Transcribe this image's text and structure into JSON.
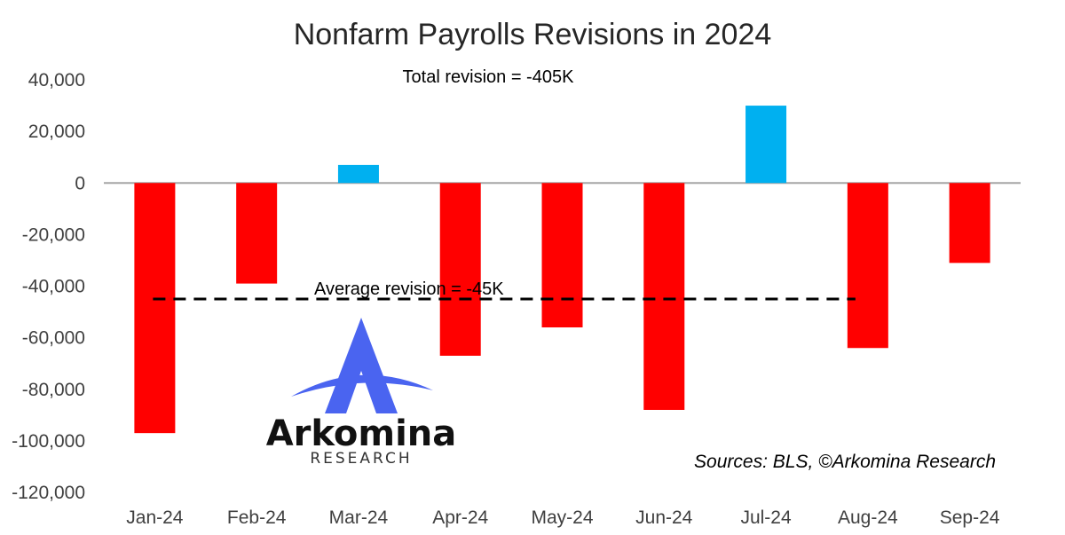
{
  "chart_data": {
    "type": "bar",
    "title": "Nonfarm Payrolls Revisions in 2024",
    "categories": [
      "Jan-24",
      "Feb-24",
      "Mar-24",
      "Apr-24",
      "May-24",
      "Jun-24",
      "Jul-24",
      "Aug-24",
      "Sep-24"
    ],
    "values": [
      -97000,
      -39000,
      7000,
      -67000,
      -56000,
      -88000,
      30000,
      -64000,
      -31000
    ],
    "ylim": [
      -120000,
      40000
    ],
    "yticks": [
      40000,
      20000,
      0,
      -20000,
      -40000,
      -60000,
      -80000,
      -100000,
      -120000
    ],
    "ytick_labels": [
      "40,000",
      "20,000",
      "0",
      "-20,000",
      "-40,000",
      "-60,000",
      "-80,000",
      "-100,000",
      "-120,000"
    ],
    "colors": {
      "negative": "#ff0000",
      "positive": "#00b0f0",
      "zero_line": "#a6a6a6",
      "average_line": "#000000"
    },
    "average_line": {
      "value": -45000,
      "label": "Average revision = -45K"
    },
    "total_annotation": "Total revision = -405K",
    "source": "Sources: BLS, ©Arkomina Research",
    "grid": false,
    "legend": "none"
  },
  "logo": {
    "name": "Arkomina",
    "subtitle": "RESEARCH",
    "color": "#4a64f0"
  }
}
